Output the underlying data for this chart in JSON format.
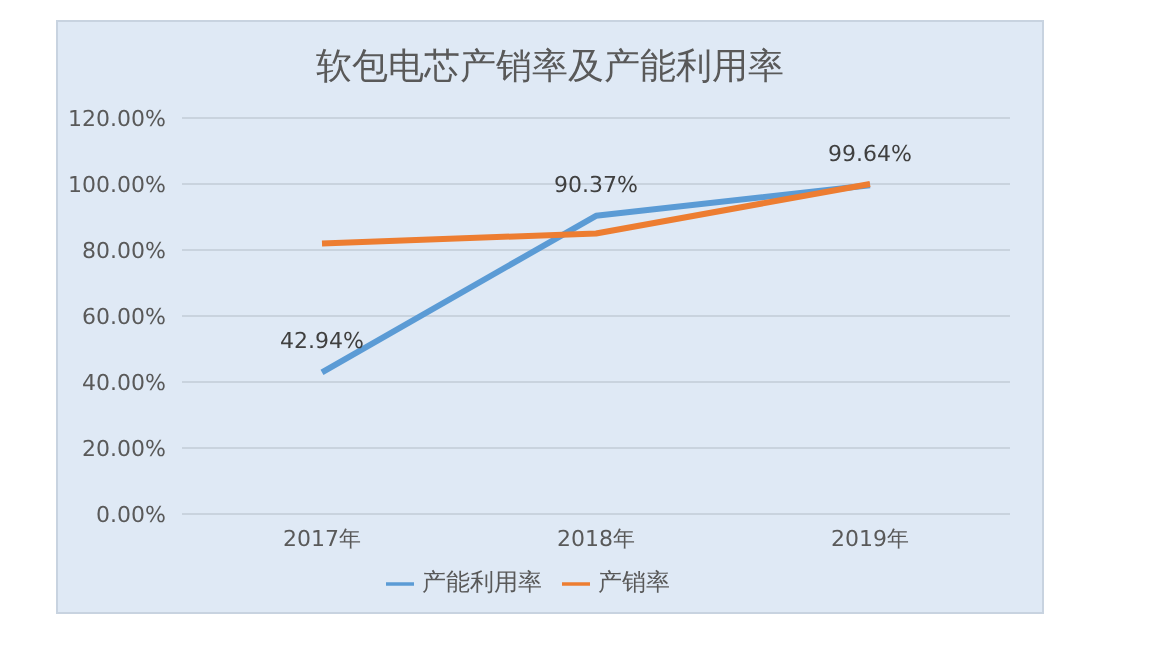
{
  "chart_data": {
    "type": "line",
    "title": "软包电芯产销率及产能利用率",
    "categories": [
      "2017年",
      "2018年",
      "2019年"
    ],
    "series": [
      {
        "name": "产能利用率",
        "color": "#5b9bd5",
        "values": [
          42.94,
          90.37,
          99.64
        ],
        "value_labels": [
          "42.94%",
          "90.37%",
          "99.64%"
        ]
      },
      {
        "name": "产销率",
        "color": "#ed7d31",
        "values": [
          82,
          85,
          100
        ]
      }
    ],
    "ylim": [
      0,
      120
    ],
    "yticks": [
      {
        "value": 0,
        "label": "0.00%"
      },
      {
        "value": 20,
        "label": "20.00%"
      },
      {
        "value": 40,
        "label": "40.00%"
      },
      {
        "value": 60,
        "label": "60.00%"
      },
      {
        "value": 80,
        "label": "80.00%"
      },
      {
        "value": 100,
        "label": "100.00%"
      },
      {
        "value": 120,
        "label": "120.00%"
      }
    ],
    "grid": "y",
    "legend": "bottom",
    "marker": "none",
    "line_style": "solid"
  }
}
